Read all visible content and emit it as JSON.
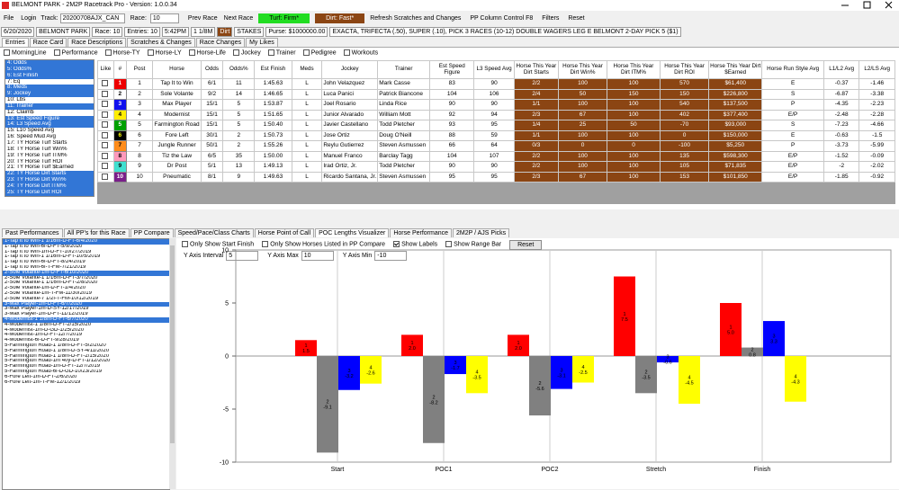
{
  "window": {
    "title": "BELMONT PARK - 2M2P Racetrack Pro - Version: 1.0.0.34"
  },
  "toolbar": {
    "file": "File",
    "login": "Login",
    "track_label": "Track:",
    "track": "20200708AJX_CAN",
    "race_label": "Race:",
    "race": "10",
    "prev": "Prev Race",
    "next": "Next Race",
    "turf": "Turf: Firm*",
    "dirt": "Dirt: Fast*",
    "refresh": "Refresh Scratches and Changes",
    "pp_column": "PP Column Control F8",
    "filters": "Filters",
    "reset": "Reset"
  },
  "race_info": [
    "6/20/2020",
    "BELMONT PARK",
    "Race: 10",
    "Entries: 10",
    "5:42PM",
    "1 1/8M",
    "Dirt",
    "STAKES",
    "Purse: $1000000.00",
    "EXACTA, TRIFECTA (.50), SUPER (.10), PICK 3 RACES (10-12) DOUBLE WAGERS LEG E BELMONT 2-DAY PICK 5 ($1)"
  ],
  "tabs": [
    "Entries",
    "Race Card",
    "Race Descriptions",
    "Scratches & Changes",
    "Race Changes",
    "My Likes"
  ],
  "filters": [
    "MorningLine",
    "Performance",
    "Horse-TY",
    "Horse-LY",
    "Horse-Life",
    "Jockey",
    "Trainer",
    "Pedigree",
    "Workouts"
  ],
  "columns": {
    "items": [
      "4: Odds",
      "5: Odds%",
      "6: Est Finish",
      "7: Eq",
      "8: Meds",
      "9: Jockey",
      "10: Lbs",
      "11: Trainer",
      "12: Claim$",
      "13: Est Speed Figure",
      "14: L3 Speed Avg",
      "15: L10 Speed Avg",
      "16: Speed Mud Avg",
      "17: TY Horse Turf Starts",
      "18: TY Horse Turf Win%",
      "19: TY Horse Turf ITM%",
      "20: TY Horse Turf ROI",
      "21: TY Horse Turf $Earned",
      "22: TY Horse Dirt Starts",
      "23: TY Horse Dirt Win%",
      "24: TY Horse Dirt ITM%",
      "25: TY Horse Dirt ROI"
    ],
    "selected": [
      true,
      true,
      true,
      false,
      true,
      true,
      false,
      true,
      false,
      true,
      true,
      false,
      false,
      false,
      false,
      false,
      false,
      false,
      true,
      true,
      true,
      true
    ]
  },
  "entries": {
    "headers": [
      "Like",
      "#",
      "Post",
      "Horse",
      "Odds",
      "Odds%",
      "Est Finish",
      "Meds",
      "Jockey",
      "Trainer",
      "Est Speed Figure",
      "L3 Speed Avg",
      "Horse This Year Dirt Starts",
      "Horse This Year Dirt Win%",
      "Horse This Year Dirt ITM%",
      "Horse This Year Dirt ROI",
      "Horse This Year Dirt $Earned",
      "Horse Run Style Avg",
      "L1/L2 Avg",
      "L2/LS Avg"
    ],
    "rows": [
      {
        "cloth": [
          "#ee0000",
          "#ffffff"
        ],
        "cells": [
          "1",
          "1",
          "Tap It to Win",
          "6/1",
          "11",
          "1:45.63",
          "L",
          "John Velazquez",
          "Mark Casse",
          "83",
          "90",
          "2/2",
          "100",
          "100",
          "570",
          "$61,400",
          "E",
          "-0.37",
          "-1.46"
        ]
      },
      {
        "cloth": [
          "#ffffff",
          "#000000"
        ],
        "cells": [
          "2",
          "2",
          "Sole Volante",
          "9/2",
          "14",
          "1:46.65",
          "L",
          "Luca Panici",
          "Patrick Biancone",
          "104",
          "106",
          "2/4",
          "50",
          "150",
          "150",
          "$226,800",
          "S",
          "-6.87",
          "-3.38"
        ]
      },
      {
        "cloth": [
          "#1010ee",
          "#ffffff"
        ],
        "cells": [
          "3",
          "3",
          "Max Player",
          "15/1",
          "5",
          "1:53.87",
          "L",
          "Joel Rosario",
          "Linda Rice",
          "90",
          "90",
          "1/1",
          "100",
          "100",
          "540",
          "$137,500",
          "P",
          "-4.35",
          "-2.23"
        ]
      },
      {
        "cloth": [
          "#ffee00",
          "#000000"
        ],
        "cells": [
          "4",
          "4",
          "Modernist",
          "15/1",
          "5",
          "1:51.65",
          "L",
          "Junior Alvarado",
          "William Mott",
          "92",
          "94",
          "2/3",
          "67",
          "100",
          "402",
          "$377,400",
          "E/P",
          "-2.48",
          "-2.28"
        ]
      },
      {
        "cloth": [
          "#00a000",
          "#ffffff"
        ],
        "cells": [
          "5",
          "5",
          "Farmington Road",
          "15/1",
          "5",
          "1:50.40",
          "L",
          "Javier Castellano",
          "Todd Pletcher",
          "93",
          "95",
          "1/4",
          "25",
          "50",
          "-70",
          "$93,000",
          "S",
          "-7.23",
          "-4.66"
        ]
      },
      {
        "cloth": [
          "#000000",
          "#ffff00"
        ],
        "cells": [
          "6",
          "6",
          "Fore Left",
          "30/1",
          "2",
          "1:50.73",
          "L",
          "Jose Ortiz",
          "Doug O'Neill",
          "88",
          "59",
          "1/1",
          "100",
          "100",
          "0",
          "$150,000",
          "E",
          "-0.63",
          "-1.5"
        ]
      },
      {
        "cloth": [
          "#ff8c1a",
          "#000000"
        ],
        "cells": [
          "7",
          "7",
          "Jungle Runner",
          "50/1",
          "2",
          "1:55.26",
          "L",
          "Reylu Gutierrez",
          "Steven Asmussen",
          "66",
          "64",
          "0/3",
          "0",
          "0",
          "-100",
          "$5,250",
          "P",
          "-3.73",
          "-5.99"
        ]
      },
      {
        "cloth": [
          "#ff99bb",
          "#000000"
        ],
        "cells": [
          "8",
          "8",
          "Tiz the Law",
          "6/5",
          "35",
          "1:50.00",
          "L",
          "Manuel Franco",
          "Barclay Tagg",
          "104",
          "107",
          "2/2",
          "100",
          "100",
          "135",
          "$598,300",
          "E/P",
          "-1.52",
          "-0.09"
        ]
      },
      {
        "cloth": [
          "#40e0d0",
          "#000000"
        ],
        "cells": [
          "9",
          "9",
          "Dr Post",
          "5/1",
          "13",
          "1:49.13",
          "L",
          "Irad Ortiz, Jr.",
          "Todd Pletcher",
          "90",
          "90",
          "2/2",
          "100",
          "100",
          "105",
          "$71,835",
          "E/P",
          "-2",
          "-2.02"
        ]
      },
      {
        "cloth": [
          "#7a1f8a",
          "#ffffff"
        ],
        "cells": [
          "10",
          "10",
          "Pneumatic",
          "8/1",
          "9",
          "1:49.63",
          "L",
          "Ricardo Santana, Jr.",
          "Steven Asmussen",
          "95",
          "95",
          "2/3",
          "67",
          "100",
          "153",
          "$101,850",
          "E/P",
          "-1.85",
          "-0.92"
        ]
      }
    ]
  },
  "lower_tabs": [
    "Past Performances",
    "All PP's for this Race",
    "PP Compare",
    "Speed/Pace/Class Charts",
    "Horse Point of Call",
    "POC Lengths Visualizer",
    "Horse Performance",
    "2M2P / AJS Picks"
  ],
  "lower_active": 5,
  "pp_list": {
    "items": [
      "1-Tap It to Win-1 1/16m-D-FT-6/4/2020",
      "1-Tap It to Win-6f-D-FT-5/9/2020",
      "1-Tap It to Win-1m-D-FT-10/27/2019",
      "1-Tap It to Win-1 1/16m-D-FT-10/5/2019",
      "1-Tap It to Win-6f-D-FT-8/24/2019",
      "1-Tap It to Win-6f-T-FM-7/21/2019",
      "2-Sole Volante-1m-D-FT-6/10/2020",
      "2-Sole Volante-1 1/16m-D-FT-3/7/2020",
      "2-Sole Volante-1 1/16m-D-FT-2/8/2020",
      "2-Sole Volante-1m-D-FT-1/4/2020",
      "2-Sole Volante-1m-T-FM-11/30/2019",
      "2-Sole Volante-7 1/2f-T-FM-10/12/2019",
      "3-Max Player-1m-D-FT-6/7/2020",
      "3-Max Player-1m-D-SY-12/17/2019",
      "3-Max Player-1m-D-FT-11/12/2019",
      "4-Modernist-1 1/8m-D-FT-6/7/2020",
      "4-Modernist-1 1/8m-D-FT-2/15/2020",
      "4-Modernist-1m-D-GD-1/25/2020",
      "4-Modernist-1m-D-FT-12/7/2019",
      "4-Modernist-6f-D-FT-9/28/2019",
      "5-Farmington Road-1 1/8m-D-FT-5/2/2020",
      "5-Farmington Road-1 1/8m-D-SY-4/11/2020",
      "5-Farmington Road-1 1/8m-D-FT-2/15/2020",
      "5-Farmington Road-1m 40y-D-FT-1/12/2020",
      "5-Farmington Road-1m-D-FT-12/7/2019",
      "5-Farmington Road-6f-D-GD-10/23/2019",
      "6-Fore Left-1m-D-FT-2/6/2020",
      "6-Fore Left-1m-T-FM-12/1/2019"
    ],
    "selected": [
      0,
      6,
      12,
      15
    ]
  },
  "options": [
    {
      "label": "Only Show Start Finish",
      "checked": false
    },
    {
      "label": "Only Show Horses Listed in PP Compare",
      "checked": false
    },
    {
      "label": "Show Labels",
      "checked": true
    },
    {
      "label": "Show Range Bar",
      "checked": false
    }
  ],
  "reset_button": "Reset",
  "axis_controls": [
    {
      "label": "Y Axis Interval",
      "value": "5"
    },
    {
      "label": "Y Axis Max",
      "value": "10"
    },
    {
      "label": "Y Axis Min",
      "value": "-10"
    }
  ],
  "chart_data": {
    "type": "bar",
    "categories": [
      "Start",
      "POC1",
      "POC2",
      "Stretch",
      "Finish"
    ],
    "series": [
      {
        "name": "1",
        "color": "#ff0000",
        "values": [
          1.5,
          2,
          2,
          7.5,
          5
        ],
        "value_labels": [
          "1.5",
          "2.0",
          "2.0",
          "7.5",
          "5.0"
        ]
      },
      {
        "name": "2",
        "color": "#808080",
        "values": [
          -9.1,
          -8.2,
          -5.6,
          -3.5,
          0.8
        ],
        "value_labels": [
          "-9.1",
          "-8.2",
          "-5.6",
          "-3.5",
          "0.8"
        ]
      },
      {
        "name": "3",
        "color": "#0000ff",
        "values": [
          -3.2,
          -1.7,
          -3.1,
          -0.6,
          3.3
        ],
        "value_labels": [
          "-3.2",
          "-1.7",
          "-3.1",
          "-0.6",
          "3.3"
        ]
      },
      {
        "name": "4",
        "color": "#ffff00",
        "values": [
          -2.6,
          -3.5,
          -2.5,
          -4.5,
          -4.3
        ],
        "value_labels": [
          "-2.6",
          "-3.5",
          "-2.5",
          "-4.5",
          "-4.3"
        ]
      }
    ],
    "ylim": [
      -10,
      10
    ],
    "yticks": [
      -10,
      -5,
      0,
      5,
      10
    ],
    "grid": "x"
  }
}
